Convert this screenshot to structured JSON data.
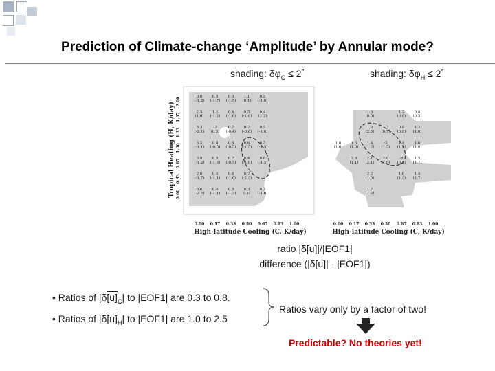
{
  "slide": {
    "title": "Prediction of Climate-change ‘Amplitude’ by Annular mode?",
    "shading_left": {
      "prefix": "shading: δφ",
      "sub": "C",
      "suffix": " ≤ 2˚"
    },
    "shading_right": {
      "prefix": "shading: δφ",
      "sub": "H",
      "suffix": " ≤ 2˚"
    },
    "ratio_line1": "ratio |δ[u]|/|EOF1|",
    "ratio_line2": "difference (|δ[u]| - |EOF1|)",
    "bullet1": {
      "pre": "• Ratios of |δ",
      "u": "[u]",
      "sub": "C",
      "post": "|  to |EOF1| are 0.3 to 0.8."
    },
    "bullet2": {
      "pre": "• Ratios of |δ",
      "u": "[u]",
      "sub": "H",
      "post": "|  to |EOF1| are 1.0 to 2.5"
    },
    "summary": "Ratios vary only by a factor of two!",
    "conclusion": "Predictable? No theories yet!",
    "colors": {
      "accent": "#cc0000",
      "rule": "#7f7f7f",
      "shade": "#d0d0d0"
    }
  },
  "chart_data": [
    {
      "type": "table",
      "title": "shading: δφC ≤ 2˚",
      "xlabel": "High-latitude Cooling (C, K/day)",
      "ylabel": "Tropical Heating (H, K/day)",
      "x_ticks": [
        "0.00",
        "0.17",
        "0.33",
        "0.50",
        "0.67",
        "0.83",
        "1.00"
      ],
      "y_ticks": [
        "2.00",
        "1.67",
        "1.33",
        "1.00",
        "0.67",
        "0.33",
        "0.00"
      ],
      "cells": [
        [
          [
            "0.6",
            "(-1.2)"
          ],
          [
            "0.5",
            "(-1.7)"
          ],
          [
            "0.6",
            "(-1.5)"
          ],
          [
            "1.1",
            "(0.1)"
          ],
          [
            "0.5",
            "(-1.0)"
          ]
        ],
        [
          [
            "2.5",
            "(1.6)"
          ],
          [
            "1.2",
            "(-1.2)"
          ],
          [
            "0.4",
            "(-1.6)"
          ],
          [
            "0.5",
            "(-1.6)"
          ],
          [
            "0.4",
            "(2.2)"
          ]
        ],
        [
          [
            "3.3",
            "(-2.1)"
          ],
          [
            "-7",
            "(0.5)"
          ],
          [
            "0.7",
            "(-0.4)"
          ],
          [
            "0.7",
            "(-0.6)"
          ],
          [
            "0.5",
            "(-1.6)"
          ]
        ],
        [
          [
            "3.5",
            "(-1.1)"
          ],
          [
            "0.8",
            "(-0.5)"
          ],
          [
            "0.8",
            "(-0.5)"
          ],
          [
            "0.6",
            "(-1.5)"
          ],
          [
            "0.5",
            "(-1.5)"
          ]
        ],
        [
          [
            "3.8",
            "(-1.2)"
          ],
          [
            "0.5",
            "(-1.6)"
          ],
          [
            "0.7",
            "(-0.5)"
          ],
          [
            "0.4",
            "(-1.8)"
          ],
          [
            "0.6",
            "(-1.5)"
          ]
        ],
        [
          [
            "2.6",
            "(-1.7)"
          ],
          [
            "0.4",
            "(-1.1)"
          ],
          [
            "0.4",
            "(-1.6)"
          ],
          [
            "0.7",
            "(-2.3)"
          ],
          [
            "",
            ""
          ]
        ],
        [
          [
            "0.6",
            "(-2.5)"
          ],
          [
            "0.4",
            "(-1.1)"
          ],
          [
            "0.5",
            "(-1.3)"
          ],
          [
            "0.3",
            "(-3)"
          ],
          [
            "0.3",
            "(-1.6)"
          ]
        ]
      ]
    },
    {
      "type": "table",
      "title": "shading: δφH ≤ 2˚",
      "xlabel": "High-latitude Cooling (C, K/day)",
      "ylabel": "",
      "x_ticks": [
        "0.00",
        "0.17",
        "0.33",
        "0.50",
        "0.67",
        "0.83",
        "1.00"
      ],
      "y_ticks": [],
      "cells": [
        [
          [
            "",
            ""
          ],
          [
            "",
            ""
          ],
          [
            "",
            ""
          ],
          [
            "",
            ""
          ],
          [
            "",
            ""
          ],
          [
            "",
            ""
          ]
        ],
        [
          [
            "",
            ""
          ],
          [
            "",
            ""
          ],
          [
            "1.6",
            "(0.5)"
          ],
          [
            "",
            ""
          ],
          [
            "1.2",
            "(0.8)"
          ],
          [
            "0.8",
            "(0.5)"
          ]
        ],
        [
          [
            "",
            ""
          ],
          [
            "",
            ""
          ],
          [
            "1.3",
            "(2.5)"
          ],
          [
            "1.2",
            "(0.7)"
          ],
          [
            "0.8",
            "(0.8)"
          ],
          [
            "1.2",
            "(1.0)"
          ]
        ],
        [
          [
            "1.8",
            "(1.6)"
          ],
          [
            "1.6",
            "(1.0)"
          ],
          [
            "1.4",
            "(1.2)"
          ],
          [
            "-5",
            "(1.5)"
          ],
          [
            "1.4",
            "(1.2)"
          ],
          [
            "1.6",
            "(1.0)"
          ]
        ],
        [
          [
            "",
            ""
          ],
          [
            "2.8",
            "(1.1)"
          ],
          [
            "2.1",
            "(2.1)"
          ],
          [
            "2.0",
            "(1.0)"
          ],
          [
            "-8",
            "(0.5)"
          ],
          [
            "1.5",
            "(1.7)"
          ]
        ],
        [
          [
            "",
            ""
          ],
          [
            "",
            ""
          ],
          [
            "2.2",
            "(1.0)"
          ],
          [
            "",
            ""
          ],
          [
            "1.6",
            "(1.3)"
          ],
          [
            "1.4",
            "(1.7)"
          ]
        ],
        [
          [
            "",
            ""
          ],
          [
            "",
            ""
          ],
          [
            "1.7",
            "(1.2)"
          ],
          [
            "",
            ""
          ],
          [
            "",
            ""
          ],
          [
            "",
            ""
          ]
        ]
      ]
    }
  ]
}
